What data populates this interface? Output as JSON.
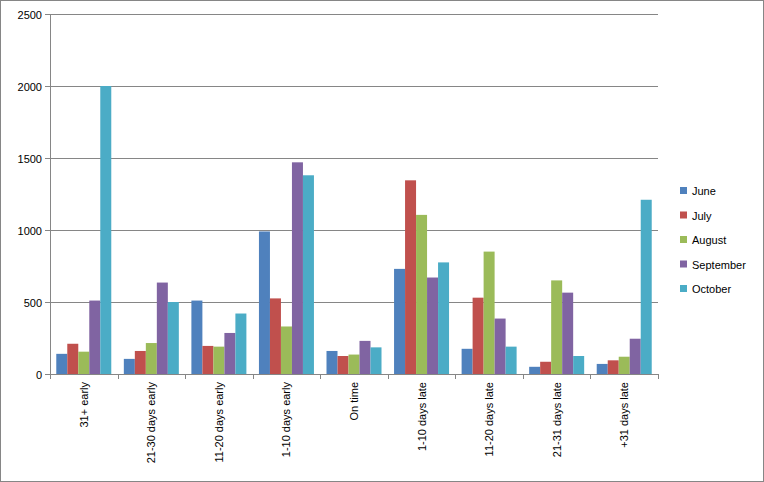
{
  "chart_data": {
    "type": "bar",
    "categories": [
      "31+ early",
      "21-30 days early",
      "11-20 days early",
      "1-10 days early",
      "On time",
      "1-10 days late",
      "11-20 days late",
      "21-31 days late",
      "+31 days late"
    ],
    "series": [
      {
        "name": "June",
        "color": "#4f81bd",
        "values": [
          140,
          105,
          510,
          990,
          160,
          730,
          175,
          50,
          70
        ]
      },
      {
        "name": "July",
        "color": "#c0504d",
        "values": [
          210,
          160,
          195,
          525,
          125,
          1345,
          530,
          85,
          95
        ]
      },
      {
        "name": "August",
        "color": "#9bbb59",
        "values": [
          155,
          215,
          190,
          330,
          135,
          1105,
          850,
          650,
          120
        ]
      },
      {
        "name": "September",
        "color": "#8064a2",
        "values": [
          510,
          635,
          285,
          1470,
          230,
          670,
          385,
          565,
          245
        ]
      },
      {
        "name": "October",
        "color": "#4bacc6",
        "values": [
          2000,
          500,
          420,
          1380,
          185,
          775,
          190,
          125,
          1210
        ]
      }
    ],
    "ylim": [
      0,
      2500
    ],
    "yticks": [
      0,
      500,
      1000,
      1500,
      2000,
      2500
    ],
    "grid": true,
    "legend": "right"
  }
}
